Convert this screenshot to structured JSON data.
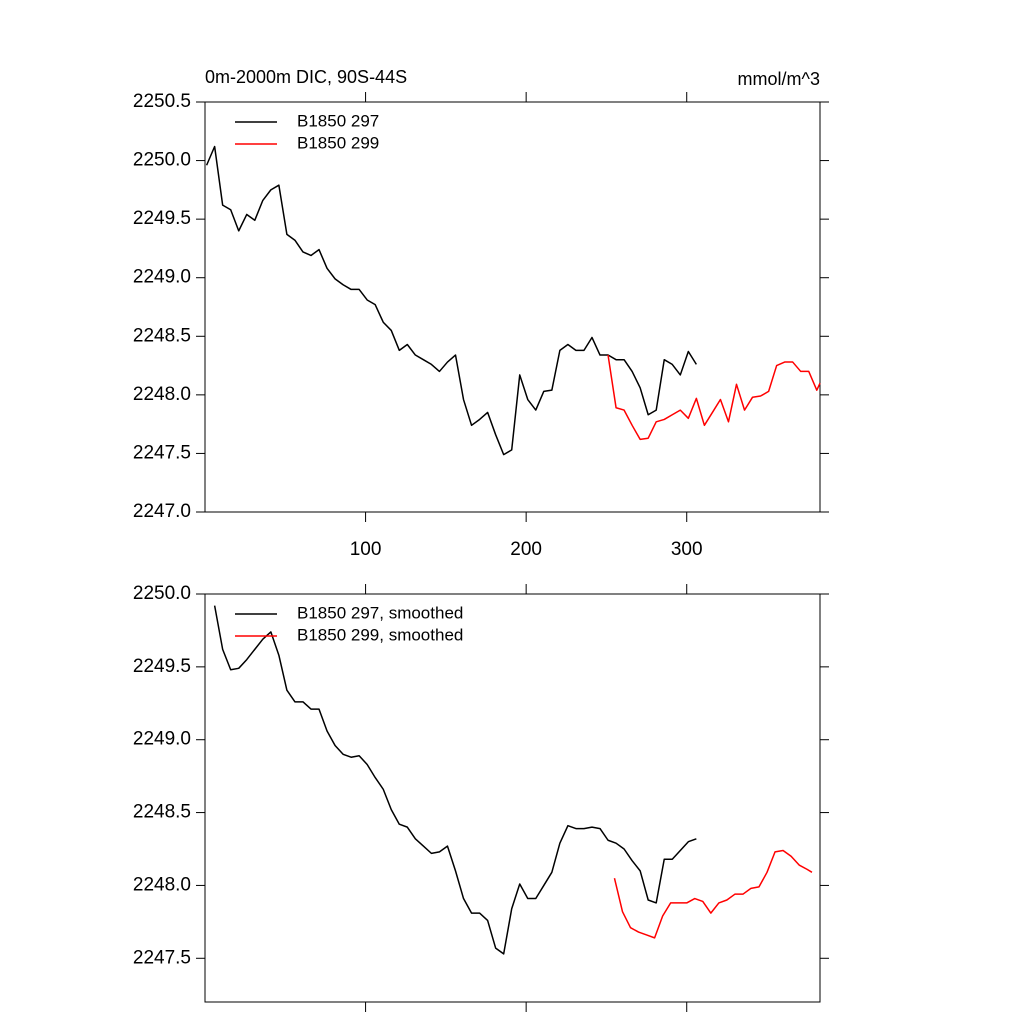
{
  "chart_data": [
    {
      "type": "line",
      "title": "0m-2000m DIC, 90S-44S",
      "units": "mmol/m^3",
      "xlim": [
        0,
        383
      ],
      "xticks": [
        100,
        200,
        300
      ],
      "ylim": [
        2247.0,
        2250.5
      ],
      "yticks": [
        {
          "value": 2247.0,
          "label": "2247.0"
        },
        2247.5,
        {
          "value": 2248.0,
          "label": "2248.0"
        },
        2248.5,
        {
          "value": 2249.0,
          "label": "2249.0"
        },
        2249.5,
        {
          "value": 2250.0,
          "label": "2250.0"
        },
        2250.5
      ],
      "legend": "upper left",
      "series": [
        {
          "name": "B1850 297",
          "color": "#000000",
          "x": [
            1,
            6,
            11,
            16,
            21,
            26,
            31,
            36,
            41,
            46,
            51,
            56,
            61,
            66,
            71,
            76,
            81,
            86,
            91,
            96,
            101,
            106,
            111,
            116,
            121,
            126,
            131,
            136,
            141,
            146,
            151,
            156,
            161,
            166,
            171,
            176,
            181,
            186,
            191,
            196,
            201,
            206,
            211,
            216,
            221,
            226,
            231,
            236,
            241,
            246,
            251,
            256,
            261,
            266,
            271,
            276,
            281,
            286,
            291,
            296,
            301,
            306
          ],
          "values": [
            2249.96,
            2250.12,
            2249.62,
            2249.58,
            2249.4,
            2249.54,
            2249.49,
            2249.66,
            2249.75,
            2249.79,
            2249.37,
            2249.32,
            2249.22,
            2249.19,
            2249.24,
            2249.08,
            2248.99,
            2248.94,
            2248.9,
            2248.9,
            2248.81,
            2248.77,
            2248.62,
            2248.55,
            2248.38,
            2248.43,
            2248.34,
            2248.3,
            2248.26,
            2248.2,
            2248.28,
            2248.34,
            2247.96,
            2247.74,
            2247.79,
            2247.85,
            2247.66,
            2247.49,
            2247.53,
            2248.17,
            2247.96,
            2247.87,
            2248.03,
            2248.04,
            2248.38,
            2248.43,
            2248.38,
            2248.38,
            2248.49,
            2248.34,
            2248.34,
            2248.3,
            2248.3,
            2248.2,
            2248.06,
            2247.83,
            2247.87,
            2248.3,
            2248.26,
            2248.17,
            2248.37,
            2248.26
          ]
        },
        {
          "name": "B1850 299",
          "color": "#ff0000",
          "x": [
            251,
            256,
            261,
            266,
            271,
            276,
            281,
            286,
            291,
            296,
            301,
            306,
            311,
            316,
            321,
            326,
            331,
            336,
            341,
            346,
            351,
            356,
            361,
            366,
            371,
            376,
            381,
            383
          ],
          "values": [
            2248.34,
            2247.89,
            2247.87,
            2247.74,
            2247.62,
            2247.63,
            2247.77,
            2247.79,
            2247.83,
            2247.87,
            2247.8,
            2247.97,
            2247.74,
            2247.85,
            2247.96,
            2247.77,
            2248.09,
            2247.87,
            2247.98,
            2247.99,
            2248.03,
            2248.25,
            2248.28,
            2248.28,
            2248.2,
            2248.2,
            2248.04,
            2248.1
          ]
        }
      ]
    },
    {
      "type": "line",
      "xlim": [
        0,
        383
      ],
      "ylim": [
        2247.2,
        2250.0
      ],
      "yticks": [
        2247.5,
        {
          "value": 2248.0,
          "label": "2248.0"
        },
        2248.5,
        {
          "value": 2249.0,
          "label": "2249.0"
        },
        2249.5,
        {
          "value": 2250.0,
          "label": "2250.0"
        }
      ],
      "legend": "upper left",
      "series": [
        {
          "name": "B1850 297, smoothed",
          "color": "#000000",
          "x": [
            6,
            11,
            16,
            21,
            26,
            31,
            36,
            41,
            46,
            51,
            56,
            61,
            66,
            71,
            76,
            81,
            86,
            91,
            96,
            101,
            106,
            111,
            116,
            121,
            126,
            131,
            136,
            141,
            146,
            151,
            156,
            161,
            166,
            171,
            176,
            181,
            186,
            191,
            196,
            201,
            206,
            211,
            216,
            221,
            226,
            231,
            236,
            241,
            246,
            251,
            256,
            261,
            266,
            271,
            276,
            281,
            286,
            291,
            296,
            301,
            306
          ],
          "values": [
            2249.92,
            2249.62,
            2249.48,
            2249.49,
            2249.55,
            2249.62,
            2249.69,
            2249.74,
            2249.58,
            2249.34,
            2249.26,
            2249.26,
            2249.21,
            2249.21,
            2249.06,
            2248.96,
            2248.9,
            2248.88,
            2248.89,
            2248.83,
            2248.74,
            2248.66,
            2248.52,
            2248.42,
            2248.4,
            2248.32,
            2248.27,
            2248.22,
            2248.23,
            2248.27,
            2248.1,
            2247.91,
            2247.81,
            2247.81,
            2247.76,
            2247.57,
            2247.53,
            2247.84,
            2248.01,
            2247.91,
            2247.91,
            2248.0,
            2248.09,
            2248.29,
            2248.41,
            2248.39,
            2248.39,
            2248.4,
            2248.39,
            2248.31,
            2248.29,
            2248.25,
            2248.17,
            2248.1,
            2247.9,
            2247.88,
            2248.18,
            2248.18,
            2248.24,
            2248.3,
            2248.32
          ]
        },
        {
          "name": "B1850 299, smoothed",
          "color": "#ff0000",
          "x": [
            255,
            260,
            265,
            270,
            275,
            280,
            285,
            290,
            295,
            300,
            305,
            310,
            315,
            320,
            325,
            330,
            335,
            340,
            345,
            350,
            355,
            360,
            365,
            370,
            375,
            378
          ],
          "values": [
            2248.05,
            2247.82,
            2247.71,
            2247.68,
            2247.66,
            2247.64,
            2247.79,
            2247.88,
            2247.88,
            2247.88,
            2247.91,
            2247.89,
            2247.81,
            2247.88,
            2247.9,
            2247.94,
            2247.94,
            2247.98,
            2247.99,
            2248.09,
            2248.23,
            2248.24,
            2248.2,
            2248.14,
            2248.11,
            2248.09
          ]
        }
      ]
    }
  ]
}
